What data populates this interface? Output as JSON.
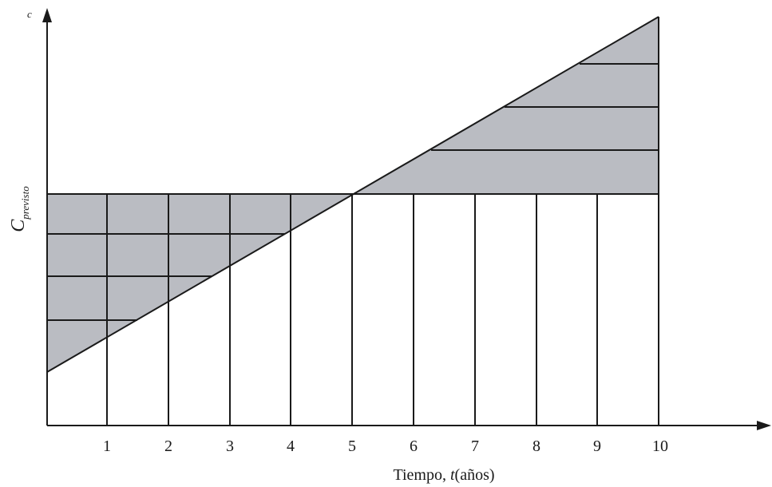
{
  "labels": {
    "top_axis": "c",
    "y_axis_main": "C",
    "y_axis_sub": "previsto",
    "x_axis_prefix": "Tiempo, ",
    "x_axis_var": "t",
    "x_axis_units": "(años)"
  },
  "x_ticks": [
    "1",
    "2",
    "3",
    "4",
    "5",
    "6",
    "7",
    "8",
    "9",
    "10"
  ],
  "colors": {
    "shade": "#babcc2",
    "line": "#1a1a1a",
    "background": "#ffffff"
  },
  "model": {
    "t_max": 10,
    "intersection_t": 5
  }
}
